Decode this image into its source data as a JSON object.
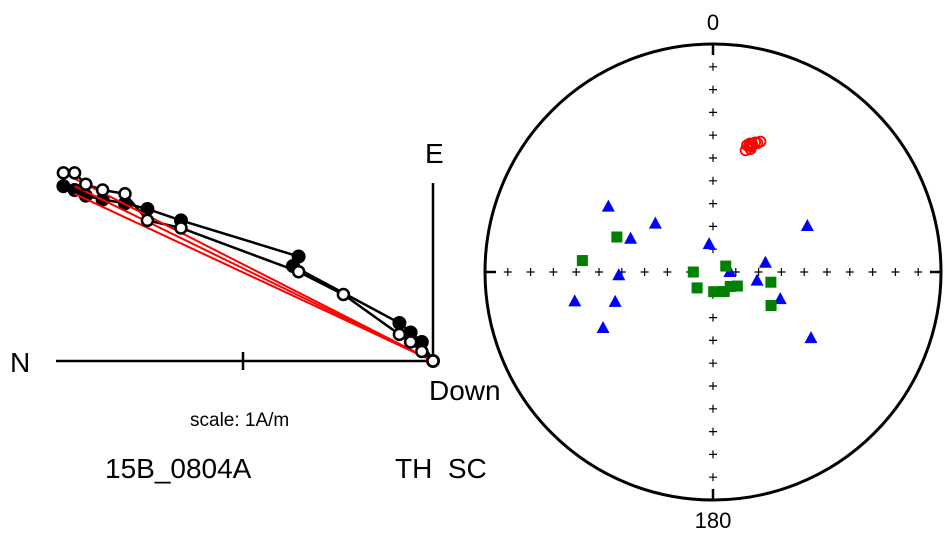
{
  "chart_data": [
    {
      "type": "scatter",
      "kind": "zijderveld",
      "labels": {
        "north": "N",
        "east": "E",
        "down": "Down"
      },
      "scale_label": "scale: 1A/m",
      "specimen": "15B_0804A",
      "tags": "TH  SC",
      "horizontal_projection": [
        [
          -3.3,
          0.92
        ],
        [
          -3.2,
          0.9
        ],
        [
          -3.1,
          0.87
        ],
        [
          -2.95,
          0.85
        ],
        [
          -2.75,
          0.83
        ],
        [
          -2.55,
          0.8
        ],
        [
          -2.25,
          0.74
        ],
        [
          -1.2,
          0.55
        ],
        [
          -1.25,
          0.5
        ],
        [
          -0.3,
          0.2
        ],
        [
          -0.2,
          0.15
        ],
        [
          -0.1,
          0.1
        ],
        [
          0.0,
          0.0
        ]
      ],
      "vertical_projection": [
        [
          -3.3,
          0.99
        ],
        [
          -3.2,
          0.99
        ],
        [
          -3.1,
          0.93
        ],
        [
          -2.95,
          0.9
        ],
        [
          -2.75,
          0.88
        ],
        [
          -2.55,
          0.74
        ],
        [
          -2.25,
          0.7
        ],
        [
          -1.2,
          0.47
        ],
        [
          -0.8,
          0.35
        ],
        [
          -0.3,
          0.14
        ],
        [
          -0.2,
          0.1
        ],
        [
          -0.1,
          0.05
        ],
        [
          0.0,
          0.0
        ]
      ],
      "fit_lines": [
        [
          [
            -3.2,
            0.92
          ],
          [
            0.0,
            0.0
          ]
        ],
        [
          [
            -3.2,
            0.88
          ],
          [
            0.0,
            0.0
          ]
        ],
        [
          [
            -3.2,
            0.96
          ],
          [
            0.0,
            0.0
          ]
        ]
      ]
    },
    {
      "type": "scatter",
      "kind": "equal_area_stereonet",
      "labels": {
        "top": "0",
        "bottom": "180"
      },
      "series": [
        {
          "symbol": "circle-open",
          "color": "#ff0000",
          "points": [
            [
              15,
              44
            ],
            [
              16,
              42
            ],
            [
              17,
              41
            ],
            [
              18,
              40
            ],
            [
              19,
              40
            ],
            [
              15,
              42
            ],
            [
              16,
              41
            ],
            [
              17,
              42
            ],
            [
              20,
              39
            ],
            [
              17,
              43
            ]
          ]
        },
        {
          "symbol": "triangle",
          "color": "#0000ff",
          "points": [
            [
              302,
              45
            ],
            [
              292,
              58
            ],
            [
              310,
              63
            ],
            [
              352,
              80
            ],
            [
              90,
              84
            ],
            [
              80,
              71
            ],
            [
              64,
              52
            ],
            [
              124,
              47
            ],
            [
              243,
              45
            ],
            [
              253,
              53
            ],
            [
              268,
              56
            ],
            [
              258,
              38
            ],
            [
              112,
              64
            ],
            [
              101,
              74
            ]
          ]
        },
        {
          "symbol": "square",
          "color": "#008000",
          "points": [
            [
              290,
              53
            ],
            [
              275,
              42
            ],
            [
              130,
              82
            ],
            [
              225,
              82
            ],
            [
              178,
              83
            ],
            [
              150,
              82
            ],
            [
              120,
              66
            ],
            [
              65,
              85
            ],
            [
              100,
              69
            ],
            [
              120,
              80
            ],
            [
              270,
              83
            ]
          ]
        }
      ]
    }
  ]
}
